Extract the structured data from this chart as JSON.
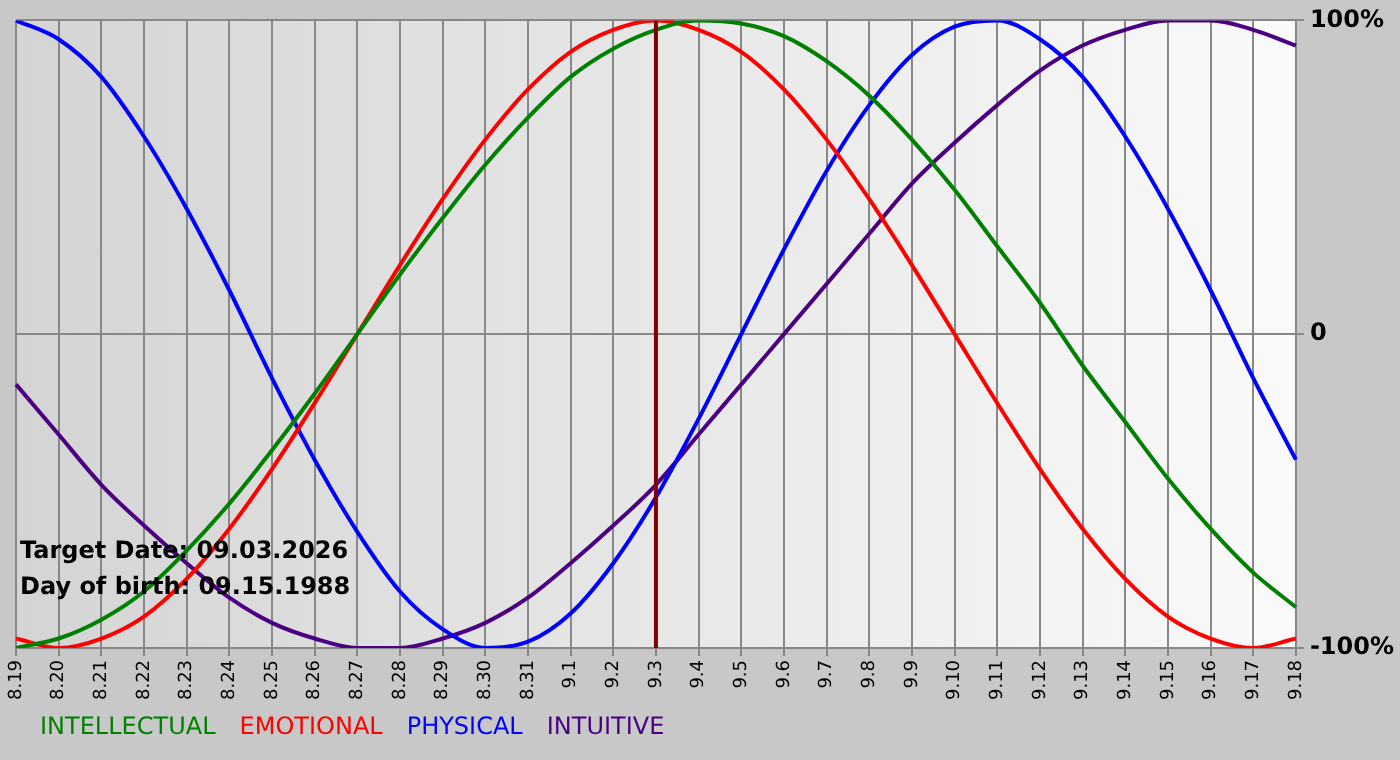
{
  "chart_data": {
    "type": "line",
    "categories": [
      "8.19",
      "8.20",
      "8.21",
      "8.22",
      "8.23",
      "8.24",
      "8.25",
      "8.26",
      "8.27",
      "8.28",
      "8.29",
      "8.30",
      "8.31",
      "9.1",
      "9.2",
      "9.3",
      "9.4",
      "9.5",
      "9.6",
      "9.7",
      "9.8",
      "9.9",
      "9.10",
      "9.11",
      "9.12",
      "9.13",
      "9.14",
      "9.15",
      "9.16",
      "9.17",
      "9.18"
    ],
    "series": [
      {
        "name": "INTELLECTUAL",
        "color": "#008000",
        "values": [
          -100,
          -97,
          -91,
          -82,
          -69,
          -54,
          -37,
          -19,
          0,
          19,
          37,
          54,
          69,
          82,
          91,
          97,
          100,
          99,
          95,
          87,
          76,
          62,
          46,
          28,
          10,
          -10,
          -28,
          -46,
          -62,
          -76,
          -87
        ]
      },
      {
        "name": "EMOTIONAL",
        "color": "#ff0000",
        "values": [
          -97,
          -100,
          -97,
          -90,
          -78,
          -62,
          -43,
          -22,
          0,
          22,
          43,
          62,
          78,
          90,
          97,
          100,
          97,
          90,
          78,
          62,
          43,
          22,
          0,
          -22,
          -43,
          -62,
          -78,
          -90,
          -97,
          -100,
          -97
        ]
      },
      {
        "name": "PHYSICAL",
        "color": "#0000ff",
        "values": [
          100,
          94,
          82,
          63,
          40,
          14,
          -14,
          -40,
          -63,
          -82,
          -94,
          -100,
          -98,
          -89,
          -73,
          -52,
          -27,
          0,
          27,
          52,
          73,
          89,
          98,
          100,
          94,
          82,
          63,
          40,
          14,
          -14,
          -40
        ]
      },
      {
        "name": "INTUITIVE",
        "color": "#4b0082",
        "values": [
          -16,
          -32,
          -48,
          -61,
          -73,
          -84,
          -92,
          -97,
          -100,
          -100,
          -97,
          -92,
          -84,
          -73,
          -61,
          -48,
          -32,
          -16,
          0,
          16,
          32,
          48,
          61,
          73,
          84,
          92,
          97,
          100,
          100,
          97,
          92
        ]
      }
    ],
    "ylim": [
      -100,
      100
    ],
    "yticks": [
      {
        "value": -100,
        "label": "-100%"
      },
      0,
      {
        "value": 100,
        "label": "100%"
      }
    ],
    "grid": true,
    "legend": "bottom left",
    "marker": "none",
    "line_style": "solid",
    "ref_lines": [
      {
        "axis": "x",
        "value": "9.3",
        "color": "#800000"
      }
    ],
    "annotations": [
      "Target Date: 09.03.2026",
      "Day of birth: 09.15.1988"
    ]
  }
}
